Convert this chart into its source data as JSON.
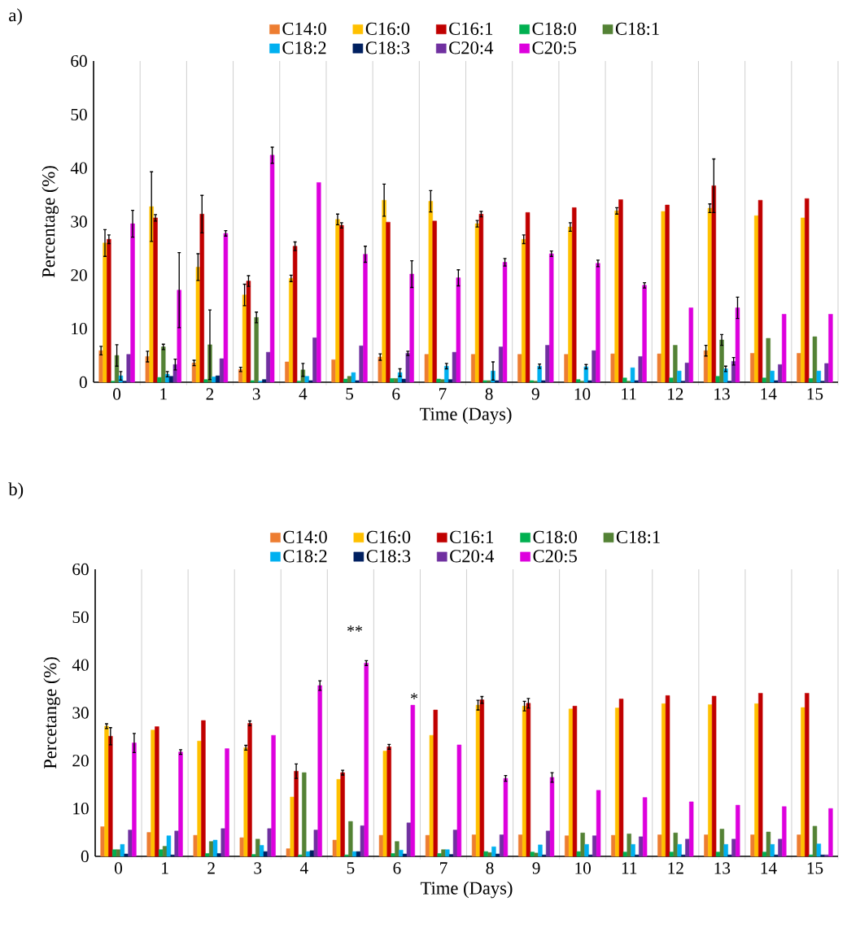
{
  "chart_data": [
    {
      "type": "bar",
      "title": "a)",
      "xlabel": "Time (Days)",
      "ylabel": "Percentage (%)",
      "legend": "top",
      "grid": "x",
      "categories": [
        "0",
        "1",
        "2",
        "3",
        "4",
        "5",
        "6",
        "7",
        "8",
        "9",
        "10",
        "11",
        "12",
        "13",
        "14",
        "15"
      ],
      "ylim": [
        0,
        60
      ],
      "yticks": [
        0,
        10,
        20,
        30,
        40,
        50,
        60
      ],
      "series": [
        {
          "name": "C14:0",
          "color": "#ed7d31",
          "values": [
            5.9,
            4.8,
            3.6,
            2.4,
            3.8,
            4.2,
            4.7,
            5.2,
            5.2,
            5.2,
            5.2,
            5.3,
            5.3,
            5.9,
            5.4,
            5.4
          ],
          "errors": [
            0.8,
            1.0,
            0.5,
            0.4,
            null,
            null,
            0.6,
            null,
            null,
            null,
            null,
            null,
            null,
            1.0,
            null,
            null
          ]
        },
        {
          "name": "C16:0",
          "color": "#ffc000",
          "values": [
            26.0,
            32.8,
            21.5,
            16.3,
            19.4,
            30.4,
            34.0,
            33.8,
            29.6,
            26.7,
            29.0,
            32.0,
            31.9,
            32.5,
            31.1,
            30.7
          ],
          "errors": [
            2.5,
            6.5,
            2.5,
            2.0,
            0.6,
            1.0,
            3.0,
            2.0,
            0.6,
            0.8,
            0.8,
            0.6,
            null,
            0.8,
            null,
            null
          ]
        },
        {
          "name": "C16:1",
          "color": "#c00000",
          "values": [
            26.7,
            30.7,
            31.4,
            18.9,
            25.4,
            29.3,
            29.9,
            30.1,
            31.4,
            31.7,
            32.6,
            34.1,
            33.1,
            36.7,
            34.0,
            34.3
          ],
          "errors": [
            0.8,
            0.6,
            3.5,
            1.0,
            0.8,
            0.5,
            null,
            null,
            0.5,
            null,
            null,
            null,
            null,
            5.0,
            null,
            null
          ]
        },
        {
          "name": "C18:0",
          "color": "#00b050",
          "values": [
            0.2,
            0.9,
            0.5,
            0.3,
            0.2,
            0.6,
            0.7,
            0.6,
            0.3,
            0.3,
            0.5,
            0.8,
            0.8,
            1.1,
            0.8,
            0.7
          ]
        },
        {
          "name": "C18:1",
          "color": "#548235",
          "values": [
            5.0,
            6.6,
            7.0,
            12.1,
            2.3,
            1.1,
            0.7,
            0.5,
            0.3,
            0.2,
            0.2,
            0.2,
            6.9,
            7.9,
            8.2,
            8.5
          ],
          "errors": [
            2.0,
            0.5,
            6.5,
            1.0,
            1.2,
            null,
            null,
            null,
            null,
            null,
            null,
            null,
            null,
            1.0,
            null,
            null
          ]
        },
        {
          "name": "C18:2",
          "color": "#00b0f0",
          "values": [
            1.2,
            1.5,
            1.0,
            0.2,
            1.1,
            1.8,
            1.8,
            3.0,
            2.1,
            3.0,
            2.9,
            2.7,
            2.1,
            2.5,
            2.1,
            2.1
          ],
          "errors": [
            0.8,
            0.5,
            null,
            null,
            null,
            null,
            0.7,
            0.5,
            1.7,
            0.4,
            0.4,
            null,
            null,
            0.5,
            null,
            null
          ]
        },
        {
          "name": "C18:3",
          "color": "#002060",
          "values": [
            0.2,
            1.1,
            1.2,
            0.5,
            0.3,
            0.3,
            0.6,
            0.5,
            0.3,
            0.3,
            0.3,
            0.3,
            0.2,
            0.2,
            0.3,
            0.2
          ]
        },
        {
          "name": "C20:4",
          "color": "#7030a0",
          "values": [
            5.2,
            3.3,
            4.4,
            5.6,
            8.3,
            6.8,
            5.4,
            5.6,
            6.6,
            6.9,
            5.9,
            4.8,
            3.6,
            3.9,
            3.3,
            3.5
          ],
          "errors": [
            null,
            1.0,
            null,
            null,
            null,
            null,
            0.4,
            null,
            null,
            null,
            null,
            null,
            null,
            0.7,
            null,
            null
          ]
        },
        {
          "name": "C20:5",
          "color": "#dd00dd",
          "values": [
            29.6,
            17.2,
            27.8,
            42.4,
            37.3,
            23.9,
            20.2,
            19.5,
            22.4,
            24.0,
            22.2,
            18.1,
            13.9,
            13.9,
            12.7,
            12.7
          ],
          "errors": [
            2.5,
            7.0,
            0.5,
            1.5,
            null,
            1.5,
            2.5,
            1.5,
            0.7,
            0.5,
            0.6,
            0.5,
            null,
            2.0,
            null,
            null
          ]
        }
      ]
    },
    {
      "type": "bar",
      "title": "b)",
      "xlabel": "Time (Days)",
      "ylabel": "Percetange (%)",
      "legend": "top",
      "grid": "x",
      "categories": [
        "0",
        "1",
        "2",
        "3",
        "4",
        "5",
        "6",
        "7",
        "8",
        "9",
        "10",
        "11",
        "12",
        "13",
        "14",
        "15"
      ],
      "ylim": [
        0,
        60
      ],
      "yticks": [
        0,
        10,
        20,
        30,
        40,
        50,
        60
      ],
      "annotations": [
        "**",
        "*"
      ],
      "series": [
        {
          "name": "C14:0",
          "color": "#ed7d31",
          "values": [
            6.2,
            5.0,
            4.4,
            3.9,
            1.6,
            3.4,
            4.4,
            4.4,
            4.5,
            4.5,
            4.3,
            4.4,
            4.5,
            4.5,
            4.5,
            4.5
          ]
        },
        {
          "name": "C16:0",
          "color": "#ffc000",
          "values": [
            27.2,
            26.4,
            24.1,
            22.7,
            12.4,
            16.1,
            22.0,
            25.3,
            31.6,
            31.4,
            30.8,
            31.0,
            31.9,
            31.7,
            31.9,
            31.1
          ],
          "errors": [
            0.5,
            null,
            null,
            0.5,
            null,
            null,
            null,
            null,
            1.0,
            1.0,
            null,
            null,
            null,
            null,
            null,
            null
          ]
        },
        {
          "name": "C16:1",
          "color": "#c00000",
          "values": [
            25.1,
            27.1,
            28.4,
            27.8,
            17.8,
            17.5,
            22.9,
            30.6,
            32.7,
            32.0,
            31.4,
            32.9,
            33.6,
            33.5,
            34.1,
            34.1
          ],
          "errors": [
            1.8,
            null,
            null,
            0.5,
            1.5,
            0.5,
            0.5,
            null,
            0.7,
            1.0,
            null,
            null,
            null,
            null,
            null,
            null
          ]
        },
        {
          "name": "C18:0",
          "color": "#00b050",
          "values": [
            1.4,
            1.4,
            0.6,
            0.4,
            0.3,
            0.3,
            0.6,
            0.6,
            1.0,
            0.9,
            1.0,
            0.9,
            0.9,
            0.9,
            0.9,
            0.3
          ]
        },
        {
          "name": "C18:1",
          "color": "#548235",
          "values": [
            1.4,
            2.1,
            3.1,
            3.6,
            17.5,
            7.3,
            3.1,
            1.4,
            0.8,
            0.7,
            4.9,
            4.7,
            4.9,
            5.7,
            5.1,
            6.3
          ]
        },
        {
          "name": "C18:2",
          "color": "#00b0f0",
          "values": [
            2.5,
            4.3,
            3.4,
            2.3,
            1.0,
            1.0,
            1.3,
            1.4,
            2.0,
            2.4,
            2.5,
            2.5,
            2.5,
            2.5,
            2.5,
            2.6
          ]
        },
        {
          "name": "C18:3",
          "color": "#002060",
          "values": [
            0.5,
            0.3,
            0.6,
            1.0,
            1.2,
            1.0,
            0.5,
            0.4,
            0.5,
            0.3,
            0.3,
            0.3,
            0.3,
            0.3,
            0.3,
            0.3
          ]
        },
        {
          "name": "C20:4",
          "color": "#7030a0",
          "values": [
            5.5,
            5.3,
            5.8,
            5.8,
            5.5,
            6.4,
            7.0,
            5.5,
            4.5,
            5.3,
            4.3,
            4.1,
            3.6,
            3.6,
            3.6,
            0.3
          ]
        },
        {
          "name": "C20:5",
          "color": "#dd00dd",
          "values": [
            23.7,
            21.8,
            22.5,
            25.3,
            35.7,
            40.4,
            31.6,
            23.3,
            16.3,
            16.5,
            13.8,
            12.3,
            11.4,
            10.7,
            10.4,
            10.0
          ],
          "errors": [
            2.0,
            0.5,
            null,
            null,
            1.0,
            0.5,
            null,
            null,
            0.6,
            1.0,
            null,
            null,
            null,
            null,
            null,
            null
          ]
        }
      ]
    }
  ]
}
